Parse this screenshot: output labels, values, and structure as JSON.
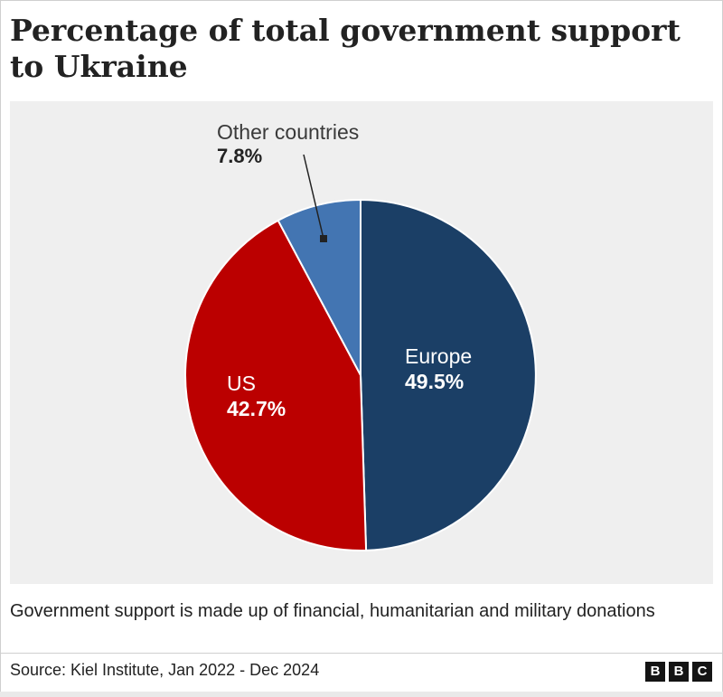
{
  "title": "Percentage of total government support to Ukraine",
  "chart_data": {
    "type": "pie",
    "title": "Percentage of total government support to Ukraine",
    "unit": "%",
    "slices": [
      {
        "label": "Europe",
        "value": 49.5,
        "value_label": "49.5%",
        "color": "#1b3f66"
      },
      {
        "label": "US",
        "value": 42.7,
        "value_label": "42.7%",
        "color": "#bb0000"
      },
      {
        "label": "Other countries",
        "value": 7.8,
        "value_label": "7.8%",
        "color": "#4375b2"
      }
    ]
  },
  "note": "Government support is made up of financial, humanitarian and military donations",
  "source": "Source: Kiel Institute, Jan 2022 - Dec 2024",
  "logo": {
    "letters": [
      "B",
      "B",
      "C"
    ]
  }
}
